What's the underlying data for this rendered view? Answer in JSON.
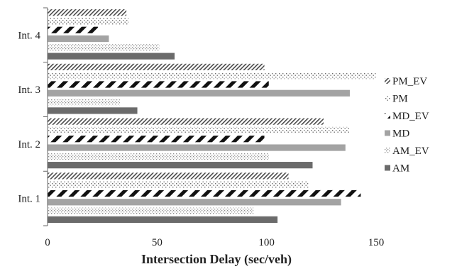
{
  "chart_data": {
    "type": "bar",
    "orientation": "horizontal",
    "categories": [
      "Int. 1",
      "Int. 2",
      "Int. 3",
      "Int. 4"
    ],
    "series": [
      {
        "name": "AM",
        "values": [
          105,
          121,
          41,
          58
        ],
        "fill": "solid",
        "color": "#6b6b6b"
      },
      {
        "name": "AM_EV",
        "values": [
          94,
          101,
          33,
          51
        ],
        "fill": "fine-dots",
        "color": "#8c8c8c"
      },
      {
        "name": "MD",
        "values": [
          134,
          136,
          138,
          28
        ],
        "fill": "solid",
        "color": "#a3a3a3"
      },
      {
        "name": "MD_EV",
        "values": [
          143,
          99,
          101,
          23
        ],
        "fill": "wide-diagonal",
        "color": "#111111"
      },
      {
        "name": "PM",
        "values": [
          119,
          138,
          150,
          37
        ],
        "fill": "dots",
        "color": "#777777"
      },
      {
        "name": "PM_EV",
        "values": [
          110,
          126,
          99,
          36
        ],
        "fill": "fine-diagonal",
        "color": "#555555"
      }
    ],
    "xlabel": "Intersection Delay (sec/veh)",
    "ylabel": "",
    "xlim": [
      0,
      150
    ],
    "xticks": [
      0,
      50,
      100,
      150
    ],
    "xtick_labels": [
      "0",
      "50",
      "100",
      "150"
    ],
    "grid": false,
    "legend_position": "right",
    "legend_order": [
      "PM_EV",
      "PM",
      "MD_EV",
      "MD",
      "AM_EV",
      "AM"
    ]
  }
}
